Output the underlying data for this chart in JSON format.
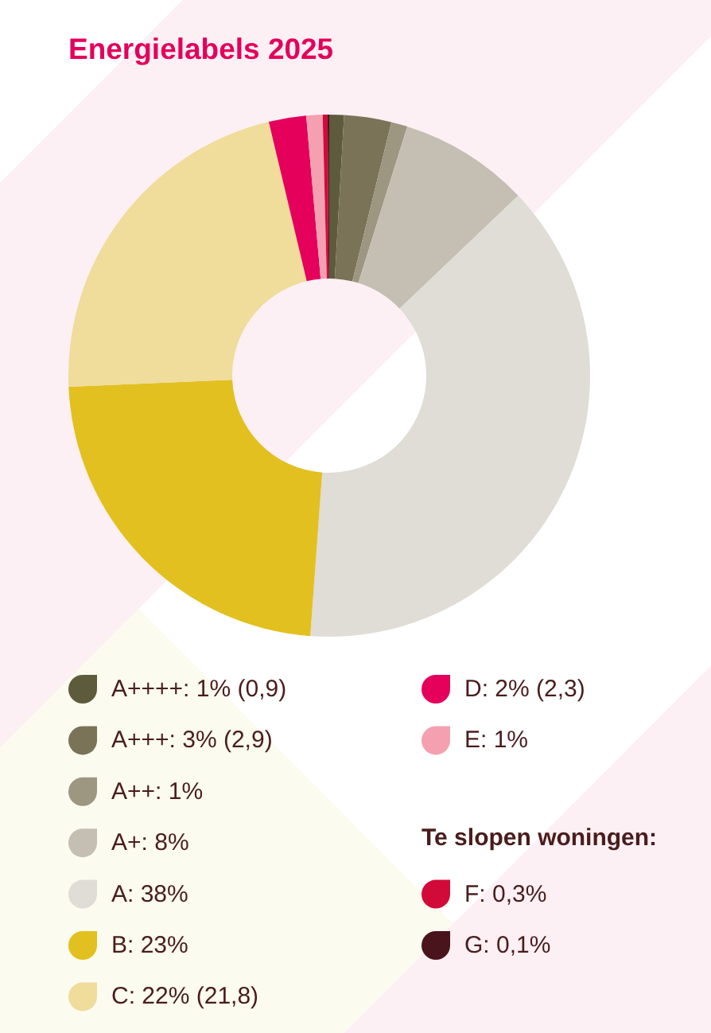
{
  "chart_data": {
    "type": "donut",
    "title": "Energielabels 2025",
    "categories": [
      "A++++: 1% (0,9)",
      "A+++: 3% (2,9)",
      "A++: 1%",
      "A+: 8%",
      "A: 38%",
      "B: 23%",
      "C: 22% (21,8)",
      "D: 2% (2,3)",
      "E: 1%",
      "F: 0,3%",
      "G: 0,1%"
    ],
    "values": [
      0.9,
      2.9,
      1,
      8,
      38,
      23,
      21.8,
      2.3,
      1,
      0.3,
      0.1
    ],
    "colors": [
      "#5e5a3c",
      "#7a7358",
      "#9d9681",
      "#c5bfb3",
      "#dfddd6",
      "#e2c01f",
      "#f0dc9b",
      "#e4005b",
      "#f4a0b0",
      "#d20a3a",
      "#4a141c"
    ],
    "legend": "bottom",
    "annotations": [
      "Te slopen woningen:"
    ]
  }
}
